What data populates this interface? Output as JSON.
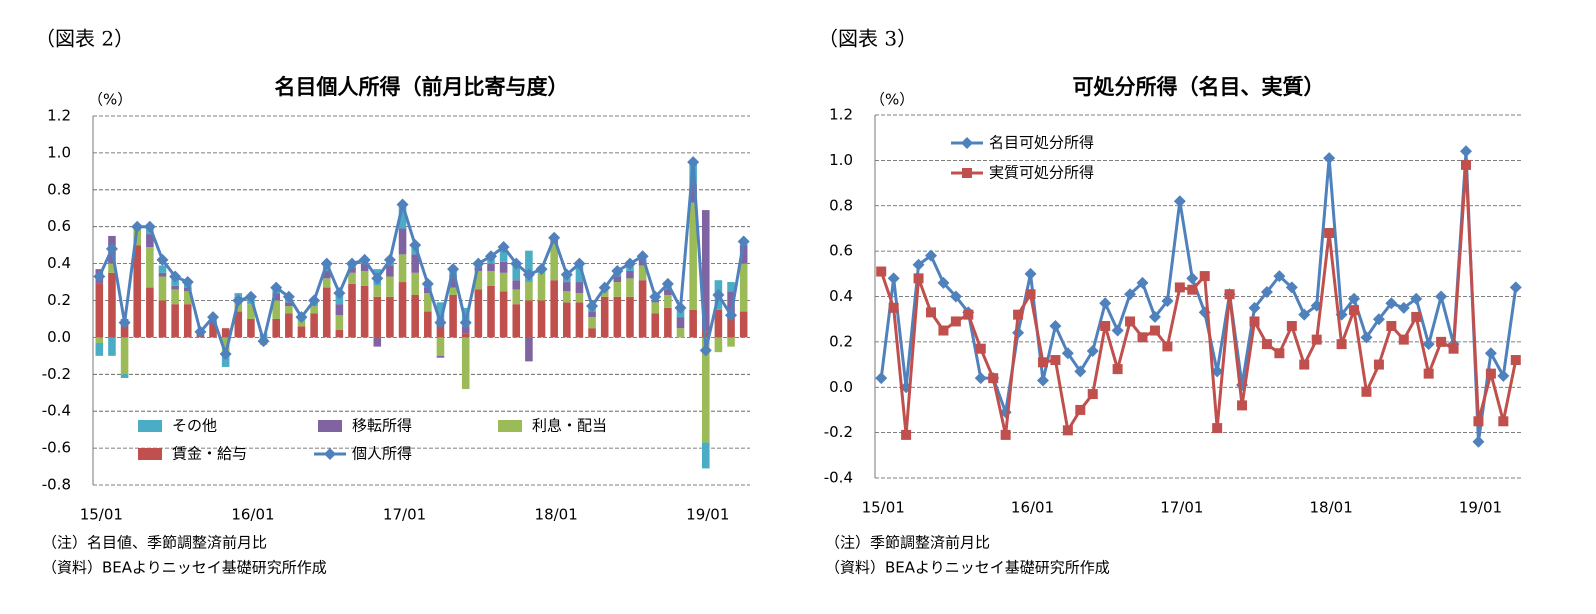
{
  "chart_data": [
    {
      "type": "bar",
      "figure_label": "（図表 2）",
      "title": "名目個人所得（前月比寄与度）",
      "unit_label": "（%）",
      "notes": [
        "（注）名目値、季節調整済前月比",
        "（資料）BEAよりニッセイ基礎研究所作成"
      ],
      "categories": [
        "15/01",
        null,
        null,
        null,
        null,
        null,
        null,
        null,
        null,
        null,
        null,
        null,
        "16/01",
        null,
        null,
        null,
        null,
        null,
        null,
        null,
        null,
        null,
        null,
        null,
        "17/01",
        null,
        null,
        null,
        null,
        null,
        null,
        null,
        null,
        null,
        null,
        null,
        "18/01",
        null,
        null,
        null,
        null,
        null,
        null,
        null,
        null,
        null,
        null,
        null,
        "19/01",
        null,
        null,
        null
      ],
      "ylim": [
        -0.8,
        1.2
      ],
      "yticks": [
        -0.8,
        -0.6,
        -0.4,
        -0.2,
        {
          "value": 0,
          "label": "0.0"
        },
        0.2,
        0.4,
        0.6,
        0.8,
        {
          "value": 1,
          "label": "1.0"
        },
        1.2
      ],
      "grid": true,
      "legend": "lower-left",
      "stacked": true,
      "series": [
        {
          "name": "その他",
          "type": "bar",
          "color": "#4bacc6",
          "values": [
            -0.07,
            -0.1,
            -0.02,
            0.0,
            0.04,
            0.04,
            0.05,
            0.03,
            0.01,
            0.02,
            -0.06,
            0.02,
            0.04,
            0.02,
            0.03,
            0.03,
            0.02,
            0.03,
            0.04,
            0.06,
            0.02,
            0.02,
            0.09,
            0.03,
            0.13,
            0.05,
            0.02,
            0.09,
            0.03,
            0.1,
            0.02,
            0.04,
            0.08,
            0.09,
            0.17,
            0.02,
            0.01,
            0.04,
            0.1,
            0.03,
            0.0,
            0.03,
            0.04,
            0.02,
            0.02,
            0.03,
            0.05,
            0.12,
            -0.14,
            0.16,
            0.05,
            0.02
          ]
        },
        {
          "name": "移転所得",
          "type": "bar",
          "color": "#8064a2",
          "values": [
            0.08,
            0.15,
            0.02,
            0.0,
            0.07,
            0.02,
            0.02,
            0.02,
            0.0,
            0.02,
            0.0,
            0.02,
            0.0,
            0.0,
            0.04,
            0.02,
            0.0,
            0.0,
            0.04,
            0.06,
            0.03,
            0.04,
            -0.05,
            0.06,
            0.14,
            0.1,
            0.03,
            -0.01,
            0.07,
            0.04,
            0.02,
            0.04,
            0.06,
            0.05,
            -0.13,
            0.0,
            0.02,
            0.05,
            0.06,
            0.03,
            0.02,
            0.03,
            0.04,
            0.03,
            0.01,
            0.03,
            0.06,
            0.1,
            0.66,
            0.0,
            0.12,
            0.1
          ]
        },
        {
          "name": "利息・配当",
          "type": "bar",
          "color": "#9bbb59",
          "values": [
            -0.03,
            0.05,
            -0.2,
            0.1,
            0.22,
            0.13,
            0.08,
            0.07,
            0.0,
            0.0,
            -0.1,
            0.06,
            0.08,
            -0.04,
            0.1,
            0.04,
            0.03,
            0.04,
            0.05,
            0.08,
            0.06,
            0.08,
            0.06,
            0.11,
            0.15,
            0.12,
            0.1,
            -0.1,
            0.04,
            -0.28,
            0.1,
            0.08,
            0.1,
            0.08,
            0.1,
            0.15,
            0.2,
            0.06,
            0.05,
            0.06,
            0.04,
            0.08,
            0.1,
            0.08,
            0.06,
            0.07,
            0.05,
            0.58,
            -0.57,
            -0.08,
            -0.05,
            0.26
          ]
        },
        {
          "name": "賃金・給与",
          "type": "bar",
          "color": "#c0504d",
          "values": [
            0.29,
            0.35,
            0.08,
            0.5,
            0.27,
            0.2,
            0.18,
            0.18,
            0.02,
            0.07,
            0.05,
            0.14,
            0.1,
            0.0,
            0.1,
            0.13,
            0.06,
            0.13,
            0.27,
            0.04,
            0.29,
            0.28,
            0.22,
            0.22,
            0.3,
            0.23,
            0.14,
            0.1,
            0.23,
            0.02,
            0.26,
            0.28,
            0.25,
            0.18,
            0.2,
            0.2,
            0.31,
            0.19,
            0.19,
            0.05,
            0.22,
            0.22,
            0.22,
            0.31,
            0.13,
            0.16,
            0.0,
            0.15,
            0.03,
            0.15,
            0.13,
            0.14
          ]
        },
        {
          "name": "個人所得",
          "type": "line",
          "marker": "diamond",
          "color": "#4f81bd",
          "values": [
            0.33,
            0.48,
            0.08,
            0.6,
            0.6,
            0.42,
            0.33,
            0.3,
            0.03,
            0.11,
            -0.09,
            0.2,
            0.22,
            -0.02,
            0.27,
            0.22,
            0.11,
            0.2,
            0.4,
            0.24,
            0.4,
            0.42,
            0.32,
            0.42,
            0.72,
            0.5,
            0.29,
            0.08,
            0.37,
            0.08,
            0.4,
            0.44,
            0.49,
            0.4,
            0.34,
            0.37,
            0.54,
            0.34,
            0.4,
            0.17,
            0.27,
            0.36,
            0.4,
            0.44,
            0.22,
            0.29,
            0.16,
            0.95,
            -0.07,
            0.23,
            0.12,
            0.52
          ]
        }
      ]
    },
    {
      "type": "line",
      "figure_label": "（図表 3）",
      "title": "可処分所得（名目、実質）",
      "unit_label": "（%）",
      "notes": [
        "（注）季節調整済前月比",
        "（資料）BEAよりニッセイ基礎研究所作成"
      ],
      "categories": [
        "15/01",
        null,
        null,
        null,
        null,
        null,
        null,
        null,
        null,
        null,
        null,
        null,
        "16/01",
        null,
        null,
        null,
        null,
        null,
        null,
        null,
        null,
        null,
        null,
        null,
        "17/01",
        null,
        null,
        null,
        null,
        null,
        null,
        null,
        null,
        null,
        null,
        null,
        "18/01",
        null,
        null,
        null,
        null,
        null,
        null,
        null,
        null,
        null,
        null,
        null,
        "19/01",
        null,
        null,
        null
      ],
      "ylim": [
        -0.4,
        1.2
      ],
      "yticks": [
        -0.4,
        -0.2,
        {
          "value": 0,
          "label": "0.0"
        },
        0.2,
        0.4,
        0.6,
        0.8,
        {
          "value": 1,
          "label": "1.0"
        },
        1.2
      ],
      "grid": true,
      "legend": "upper-left",
      "series": [
        {
          "name": "名目可処分所得",
          "marker": "diamond",
          "color": "#4f81bd",
          "values": [
            0.04,
            0.48,
            0.0,
            0.54,
            0.58,
            0.46,
            0.4,
            0.33,
            0.04,
            0.04,
            -0.11,
            0.24,
            0.5,
            0.03,
            0.27,
            0.15,
            0.07,
            0.16,
            0.37,
            0.25,
            0.41,
            0.46,
            0.31,
            0.38,
            0.82,
            0.48,
            0.33,
            0.07,
            0.41,
            0.01,
            0.35,
            0.42,
            0.49,
            0.44,
            0.32,
            0.36,
            1.01,
            0.32,
            0.39,
            0.22,
            0.3,
            0.37,
            0.35,
            0.39,
            0.19,
            0.4,
            0.19,
            1.04,
            -0.24,
            0.15,
            0.05,
            0.44
          ]
        },
        {
          "name": "実質可処分所得",
          "marker": "square",
          "color": "#c0504d",
          "values": [
            0.51,
            0.35,
            -0.21,
            0.48,
            0.33,
            0.25,
            0.29,
            0.32,
            0.17,
            0.04,
            -0.21,
            0.32,
            0.41,
            0.11,
            0.12,
            -0.19,
            -0.1,
            -0.03,
            0.27,
            0.08,
            0.29,
            0.22,
            0.25,
            0.18,
            0.44,
            0.43,
            0.49,
            -0.18,
            0.41,
            -0.08,
            0.29,
            0.19,
            0.15,
            0.27,
            0.1,
            0.21,
            0.68,
            0.19,
            0.34,
            -0.02,
            0.1,
            0.27,
            0.21,
            0.31,
            0.06,
            0.2,
            0.17,
            0.98,
            -0.15,
            0.06,
            -0.15,
            0.12
          ]
        }
      ]
    }
  ]
}
